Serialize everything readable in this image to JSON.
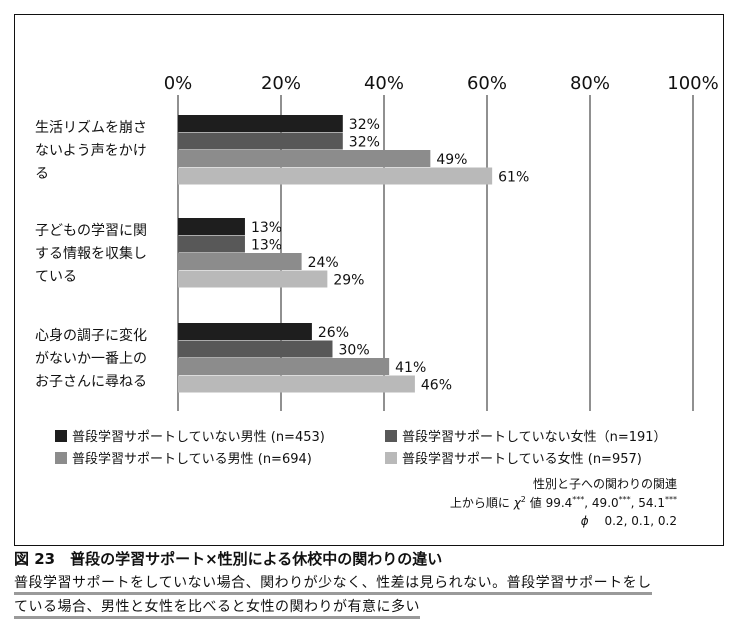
{
  "chart_data": {
    "type": "bar",
    "orientation": "horizontal",
    "xlim": [
      0,
      100
    ],
    "x_ticks": [
      "0%",
      "20%",
      "40%",
      "60%",
      "80%",
      "100%"
    ],
    "categories": [
      [
        "生活リズムを崩さ",
        "ないよう声をかけ",
        "る"
      ],
      [
        "子どもの学習に関",
        "する情報を収集し",
        "ている"
      ],
      [
        "心身の調子に変化",
        "がないか一番上の",
        "お子さんに尋ねる"
      ]
    ],
    "series": [
      {
        "name": "普段学習サポートしていない男性 (n=453)",
        "color": "#1e1e1e",
        "values": [
          32,
          13,
          26
        ]
      },
      {
        "name": "普段学習サポートしていない女性（n=191）",
        "color": "#585858",
        "values": [
          32,
          13,
          30
        ]
      },
      {
        "name": "普段学習サポートしている男性 (n=694)",
        "color": "#8c8c8c",
        "values": [
          49,
          24,
          41
        ]
      },
      {
        "name": "普段学習サポートしている女性 (n=957)",
        "color": "#b9b9b9",
        "values": [
          61,
          29,
          46
        ]
      }
    ],
    "value_suffix": "%",
    "grid": true,
    "legend_position": "bottom"
  },
  "stats_note": {
    "line1": "性別と子への関わりの関連",
    "line2_prefix": "上から順に",
    "chi_symbol": "χ",
    "chi_sup": "2",
    "value_word": "値",
    "values": [
      {
        "value": "99.4",
        "sig": "***"
      },
      {
        "value": "49.0",
        "sig": "***"
      },
      {
        "value": "54.1",
        "sig": "***"
      }
    ],
    "phi_symbol": "ϕ",
    "phi_values": "0.2, 0.1, 0.2"
  },
  "caption": {
    "title": "図 23　普段の学習サポート×性別による休校中の関わりの違い",
    "line1": "普段学習サポートをしていない場合、関わりが少なく、性差は見られない。普段学習サポートをし",
    "line2": "ている場合、男性と女性を比べると女性の関わりが有意に多い"
  }
}
